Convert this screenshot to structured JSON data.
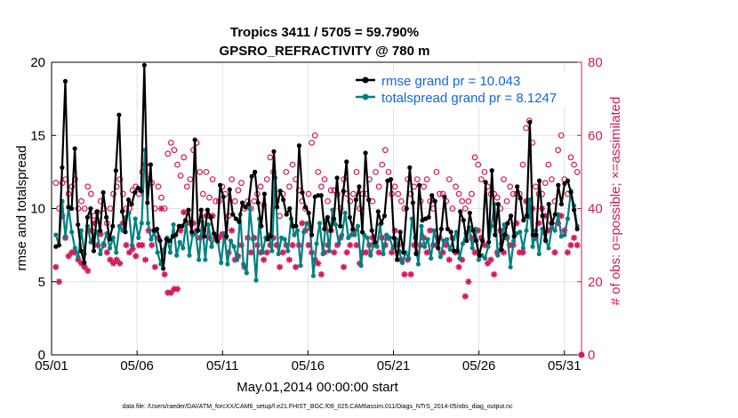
{
  "chart_data": {
    "type": "line",
    "title": "Tropics 3411 / 5705 = 59.790%",
    "subtitle": "GPSRO_REFRACTIVITY @ 780 m",
    "xlabel": "May.01,2014 00:00:00 start",
    "ylabel": "rmse and totalspread",
    "ylabel_right": "# of obs: o=possible; ×=assimilated",
    "footnote": "data file: /Users/raeder/DAI/ATM_forcXX/CAM6_setup/f.e21.FHIST_BGC.f09_025.CAM6assim.011/Diags_NTrS_2014-05/obs_diag_output.nc",
    "xlim": [
      0,
      31
    ],
    "ylim": [
      0,
      20
    ],
    "ylim_right": [
      0,
      80
    ],
    "x_ticks": [
      {
        "value": 0,
        "label": "05/01"
      },
      {
        "value": 5,
        "label": "05/06"
      },
      {
        "value": 10,
        "label": "05/11"
      },
      {
        "value": 15,
        "label": "05/16"
      },
      {
        "value": 20,
        "label": "05/21"
      },
      {
        "value": 25,
        "label": "05/26"
      },
      {
        "value": 30,
        "label": "05/31"
      }
    ],
    "y_ticks": [
      "0",
      "5",
      "10",
      "15",
      "20"
    ],
    "y_ticks_right": [
      "0",
      "20",
      "40",
      "60",
      "80"
    ],
    "grid": true,
    "legend_position": "top-right",
    "colors": {
      "rmse": "#000000",
      "spread": "#008080",
      "obs": "#d6185f"
    },
    "series": [
      {
        "name": "rmse grand pr = 10.043",
        "values": [
          7.4,
          7.5,
          12.8,
          18.7,
          10.1,
          10.0,
          14.1,
          8.9,
          7.1,
          6.3,
          9.4,
          10.0,
          7.1,
          9.8,
          8.5,
          11.1,
          9.4,
          7.9,
          8.8,
          12.6,
          16.4,
          9.8,
          8.4,
          10.6,
          10.3,
          11.1,
          11.4,
          11.2,
          19.8,
          10.4,
          13.0,
          8.5,
          8.6,
          7.8,
          5.9,
          7.9,
          7.8,
          8.1,
          8.2,
          8.8,
          8.8,
          9.2,
          9.9,
          8.4,
          14.7,
          8.5,
          9.9,
          8.1,
          9.9,
          9.4,
          8.3,
          7.8,
          11.6,
          10.8,
          8.1,
          11.3,
          9.6,
          9.3,
          9.1,
          10.4,
          10.1,
          10.3,
          12.2,
          12.5,
          10.4,
          8.8,
          11.0,
          7.9,
          8.1,
          13.9,
          10.1,
          11.2,
          10.6,
          9.6,
          10.0,
          8.8,
          8.8,
          14.3,
          11.1,
          10.1,
          9.7,
          8.2,
          10.8,
          10.9,
          10.9,
          8.6,
          9.4,
          8.5,
          9.3,
          12.1,
          8.8,
          11.2,
          13.2,
          9.4,
          8.6,
          10.6,
          11.5,
          8.4,
          13.8,
          10.6,
          8.5,
          7.7,
          9.8,
          9.0,
          9.5,
          11.9,
          12.0,
          8.0,
          6.5,
          8.4,
          7.0,
          10.0,
          12.8,
          10.4,
          6.9,
          11.6,
          9.2,
          9.3,
          9.4,
          10.9,
          10.5,
          7.3,
          8.6,
          10.8,
          8.6,
          8.4,
          7.1,
          7.1,
          9.8,
          9.2,
          7.8,
          9.7,
          8.5,
          7.8,
          6.8,
          7.8,
          11.8,
          7.7,
          12.6,
          8.2,
          10.3,
          7.2,
          8.2,
          9.0,
          9.5,
          8.1,
          11.5,
          10.7,
          9.2,
          9.5,
          15.9,
          8.2,
          8.2,
          11.9,
          9.5,
          7.8,
          10.3,
          9.0,
          9.6,
          11.6,
          10.3,
          11.7,
          11.9,
          11.1,
          9.9,
          8.6
        ]
      },
      {
        "name": "totalspread grand pr = 8.1247",
        "values": [
          8.2,
          7.5,
          10.5,
          8.1,
          10.1,
          8.4,
          7.3,
          6.7,
          8.5,
          6.9,
          8.8,
          7.7,
          8.2,
          8.4,
          6.9,
          7.6,
          8.3,
          7.3,
          8.0,
          7.0,
          8.8,
          8.5,
          9.4,
          9.7,
          7.5,
          9.3,
          8.0,
          9.0,
          14.0,
          9.0,
          7.9,
          8.4,
          7.0,
          6.2,
          7.2,
          8.0,
          7.0,
          8.9,
          6.8,
          7.7,
          7.3,
          9.0,
          6.8,
          8.2,
          8.3,
          6.5,
          9.1,
          6.5,
          8.9,
          7.4,
          8.2,
          7.7,
          6.3,
          8.3,
          6.2,
          7.8,
          7.4,
          6.5,
          9.6,
          6.2,
          5.6,
          10.0,
          7.9,
          5.1,
          9.3,
          7.0,
          8.0,
          8.2,
          7.1,
          12.1,
          6.9,
          8.0,
          7.9,
          7.1,
          9.3,
          8.2,
          8.5,
          6.1,
          8.4,
          9.0,
          8.6,
          5.4,
          7.6,
          9.0,
          6.9,
          9.2,
          7.1,
          9.9,
          8.9,
          7.6,
          8.2,
          9.7,
          8.0,
          8.2,
          8.2,
          8.8,
          6.1,
          8.2,
          8.0,
          6.8,
          7.6,
          7.4,
          8.9,
          6.9,
          8.2,
          8.0,
          7.3,
          7.9,
          7.1,
          6.3,
          7.0,
          6.6,
          9.3,
          8.0,
          6.2,
          8.8,
          7.4,
          7.9,
          6.6,
          8.5,
          7.5,
          6.7,
          7.8,
          7.9,
          7.2,
          7.9,
          8.4,
          6.6,
          7.6,
          8.3,
          8.7,
          7.3,
          8.6,
          6.5,
          6.8,
          6.6,
          7.4,
          8.8,
          10.3,
          6.8,
          7.6,
          8.9,
          8.1,
          6.0,
          7.8,
          8.3,
          8.4,
          7.3,
          8.5,
          10.6,
          7.4,
          8.5,
          6.9,
          8.6,
          7.9,
          7.3,
          8.7,
          8.5,
          9.6,
          8.1,
          8.2,
          9.3,
          11.2,
          10.2,
          8.8
        ]
      },
      {
        "name": "obs possible",
        "values": [
          47,
          40,
          47,
          48,
          44,
          46,
          48,
          40,
          42,
          40,
          46,
          44,
          38,
          39,
          42,
          40,
          36,
          40,
          44,
          46,
          48,
          44,
          40,
          40,
          45,
          46,
          44,
          50,
          52,
          48,
          47,
          40,
          46,
          43,
          40,
          55,
          58,
          56,
          52,
          49,
          54,
          46,
          48,
          56,
          58,
          50,
          44,
          50,
          43,
          48,
          42,
          42,
          46,
          44,
          38,
          48,
          42,
          45,
          47,
          40,
          42,
          40,
          42,
          44,
          46,
          41,
          48,
          54,
          50,
          42,
          38,
          44,
          50,
          46,
          52,
          48,
          45,
          42,
          40,
          44,
          58,
          60,
          50,
          46,
          48,
          42,
          45,
          45,
          44,
          40,
          48,
          44,
          42,
          44,
          50,
          40,
          44,
          44,
          48,
          42,
          50,
          46,
          52,
          56,
          50,
          44,
          46,
          44,
          42,
          40,
          48,
          44,
          46,
          48,
          42,
          46,
          48,
          42,
          40,
          50,
          44,
          44,
          42,
          48,
          40,
          46,
          44,
          42,
          40,
          42,
          44,
          54,
          52,
          48,
          50,
          46,
          44,
          44,
          43,
          40,
          48,
          42,
          46,
          44,
          44,
          44,
          52,
          62,
          64,
          58,
          46,
          44,
          44,
          47,
          52,
          48,
          42,
          56,
          60,
          48,
          44,
          54,
          52,
          50
        ]
      },
      {
        "name": "obs assimilated",
        "values": [
          24,
          20,
          38,
          32,
          27,
          28,
          28,
          26,
          25,
          24,
          23,
          34,
          36,
          30,
          33,
          30,
          28,
          26,
          25,
          26,
          25,
          36,
          30,
          28,
          29,
          27,
          30,
          30,
          26,
          34,
          30,
          24,
          32,
          40,
          22,
          17,
          17,
          18,
          18,
          34,
          39,
          36,
          36,
          36,
          34,
          32,
          34,
          38,
          32,
          38,
          32,
          32,
          33,
          32,
          28,
          34,
          26,
          27,
          30,
          24,
          32,
          28,
          32,
          30,
          28,
          26,
          28,
          30,
          32,
          30,
          24,
          28,
          30,
          26,
          30,
          24,
          30,
          36,
          34,
          30,
          28,
          26,
          25,
          22,
          28,
          30,
          34,
          28,
          30,
          32,
          24,
          28,
          30,
          34,
          30,
          25,
          28,
          28,
          30,
          32,
          30,
          28,
          32,
          30,
          32,
          28,
          34,
          30,
          26,
          22,
          26,
          22,
          30,
          28,
          30,
          32,
          28,
          34,
          30,
          30,
          32,
          28,
          30,
          26,
          32,
          28,
          24,
          26,
          16,
          20,
          32,
          28,
          34,
          32,
          30,
          25,
          26,
          22,
          28,
          34,
          28,
          32,
          30,
          30,
          36,
          28,
          28,
          42,
          38,
          40,
          32,
          36,
          40,
          38,
          34,
          36,
          28,
          36,
          38,
          34,
          28,
          30,
          32,
          30
        ]
      }
    ]
  }
}
